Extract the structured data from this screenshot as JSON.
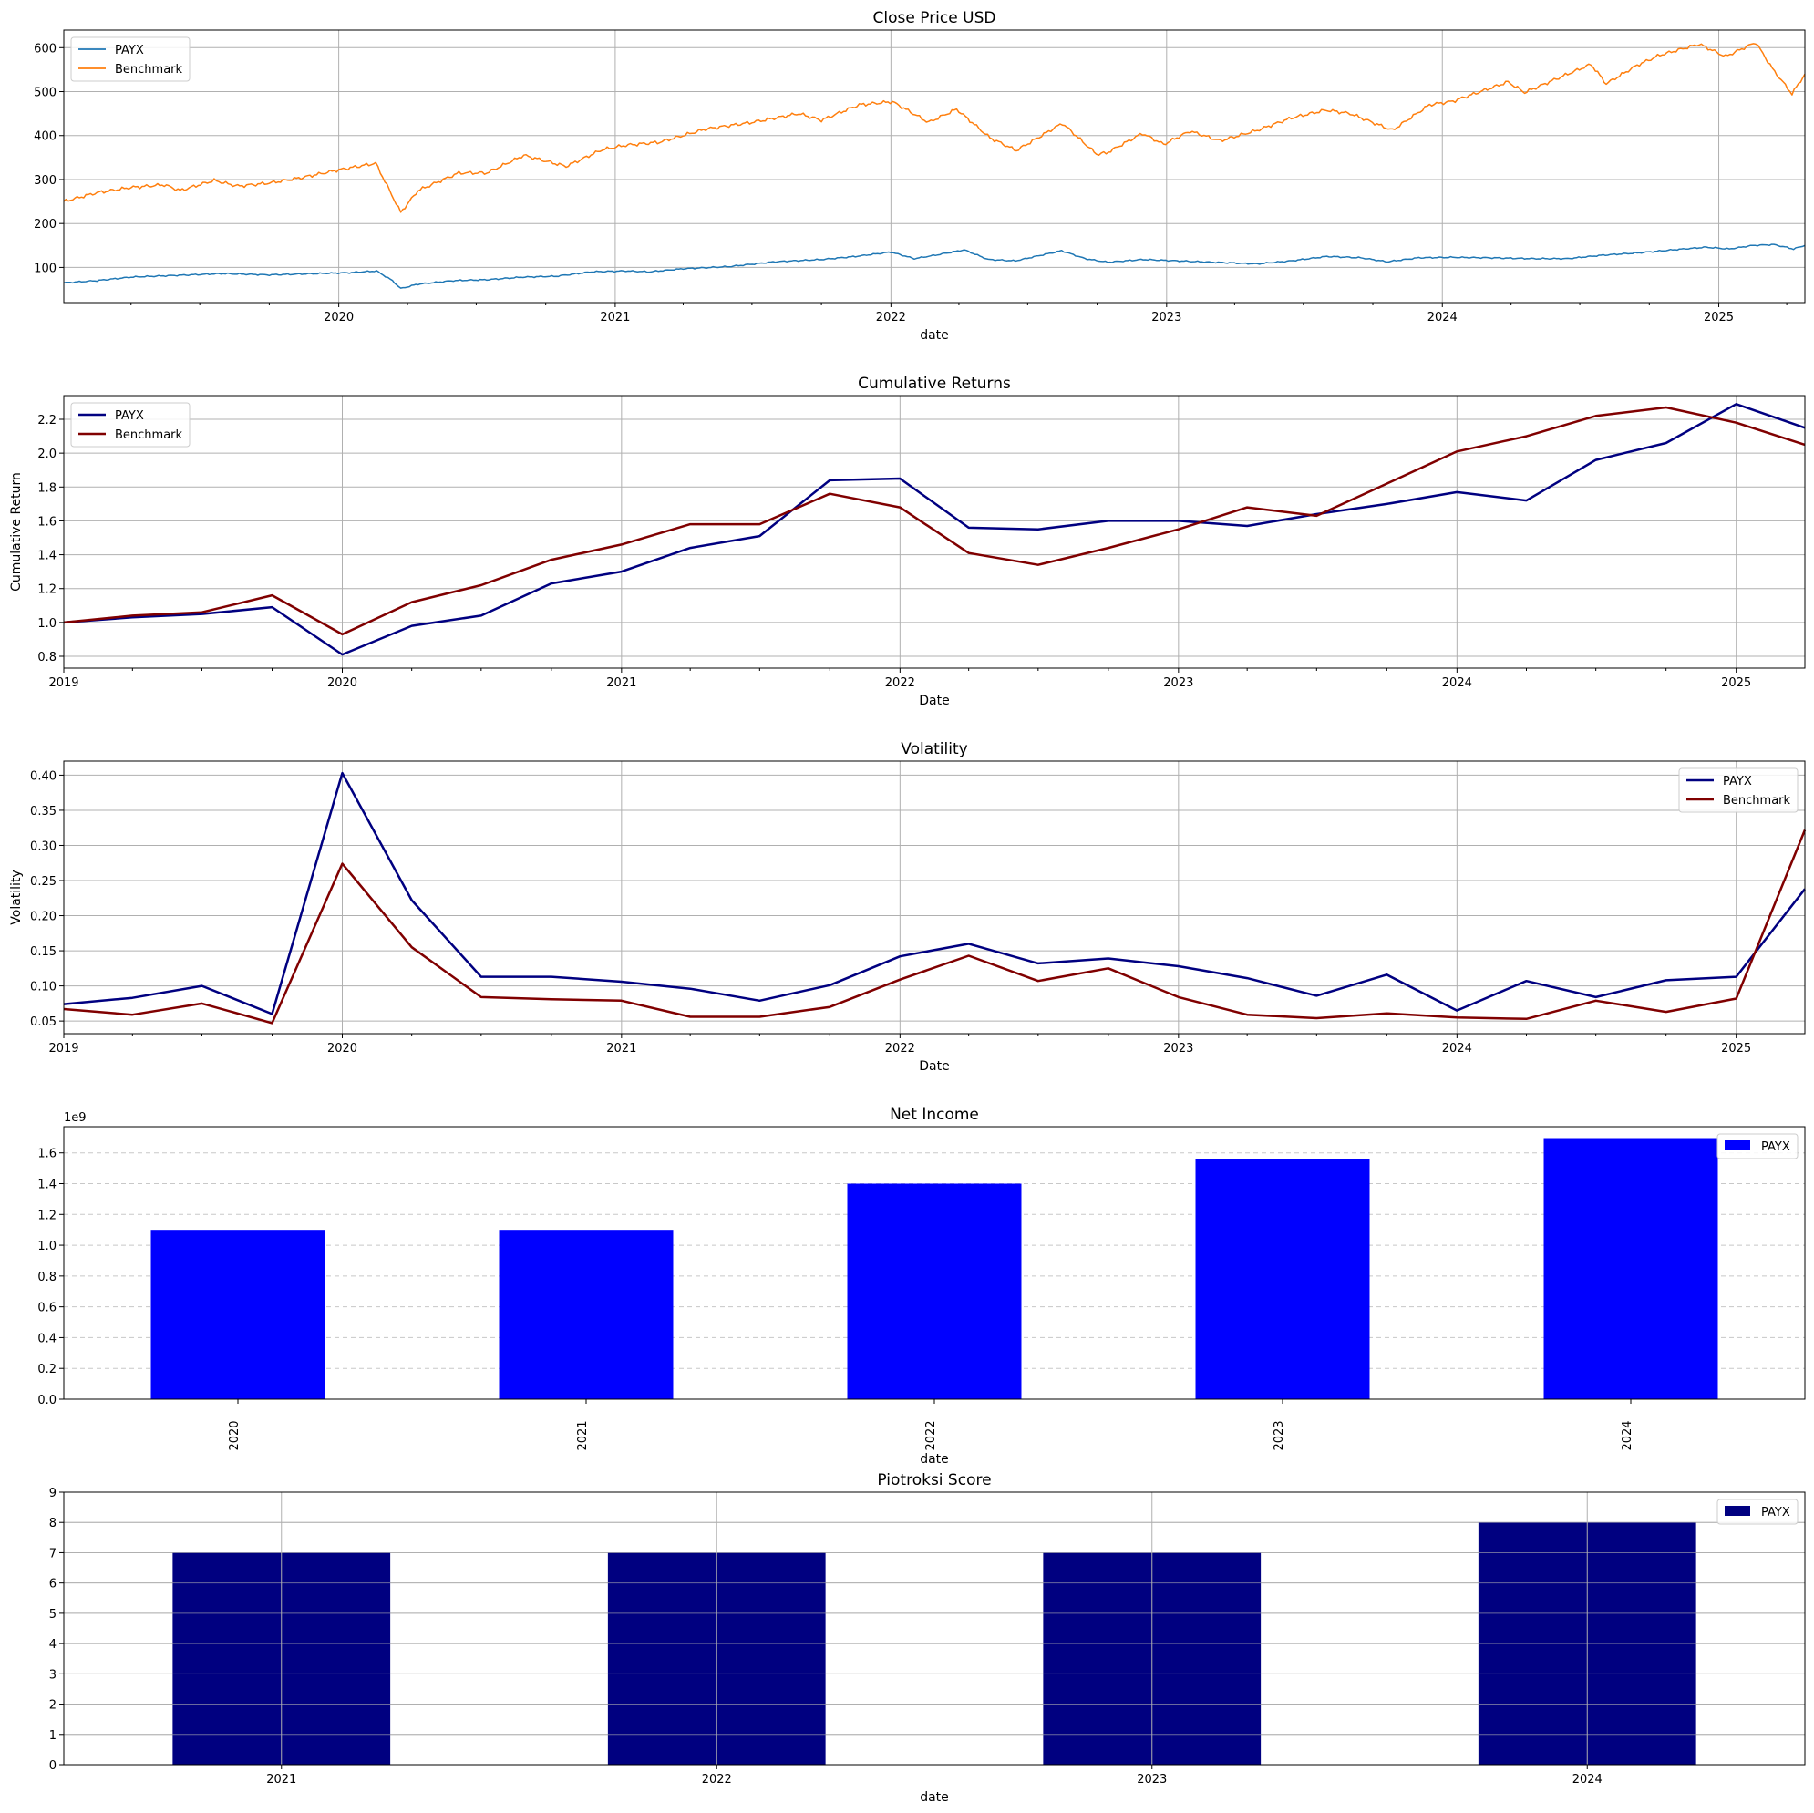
{
  "chart_data": [
    {
      "type": "line",
      "title": "Close Price USD",
      "xlabel": "date",
      "ylabel": "",
      "x_range": [
        "2019-01-02",
        "2025-04-25"
      ],
      "ylim": [
        20,
        640
      ],
      "yticks": [
        100,
        200,
        300,
        400,
        500,
        600
      ],
      "xticks": [
        "2020",
        "2021",
        "2022",
        "2023",
        "2024",
        "2025"
      ],
      "grid": true,
      "legend_position": "upper-left",
      "series": [
        {
          "name": "PAYX",
          "color": "#1f77b4",
          "points": [
            [
              "2019-01-02",
              65
            ],
            [
              "2019-02-15",
              70
            ],
            [
              "2019-04-01",
              78
            ],
            [
              "2019-06-01",
              82
            ],
            [
              "2019-08-01",
              86
            ],
            [
              "2019-10-01",
              83
            ],
            [
              "2019-12-01",
              86
            ],
            [
              "2020-01-15",
              88
            ],
            [
              "2020-02-20",
              92
            ],
            [
              "2020-03-12",
              70
            ],
            [
              "2020-03-23",
              52
            ],
            [
              "2020-04-15",
              62
            ],
            [
              "2020-06-01",
              70
            ],
            [
              "2020-07-15",
              72
            ],
            [
              "2020-09-01",
              78
            ],
            [
              "2020-10-15",
              80
            ],
            [
              "2020-12-01",
              90
            ],
            [
              "2021-01-15",
              92
            ],
            [
              "2021-02-15",
              90
            ],
            [
              "2021-04-01",
              97
            ],
            [
              "2021-06-01",
              102
            ],
            [
              "2021-08-01",
              113
            ],
            [
              "2021-10-01",
              118
            ],
            [
              "2021-11-15",
              125
            ],
            [
              "2022-01-01",
              135
            ],
            [
              "2022-02-01",
              120
            ],
            [
              "2022-03-01",
              128
            ],
            [
              "2022-04-08",
              140
            ],
            [
              "2022-05-10",
              118
            ],
            [
              "2022-06-15",
              115
            ],
            [
              "2022-08-15",
              138
            ],
            [
              "2022-09-15",
              120
            ],
            [
              "2022-10-15",
              112
            ],
            [
              "2022-12-01",
              118
            ],
            [
              "2023-01-15",
              115
            ],
            [
              "2023-03-01",
              112
            ],
            [
              "2023-05-01",
              108
            ],
            [
              "2023-06-15",
              115
            ],
            [
              "2023-08-01",
              125
            ],
            [
              "2023-09-15",
              122
            ],
            [
              "2023-10-20",
              113
            ],
            [
              "2023-12-01",
              122
            ],
            [
              "2024-01-15",
              123
            ],
            [
              "2024-03-01",
              122
            ],
            [
              "2024-05-01",
              120
            ],
            [
              "2024-06-15",
              120
            ],
            [
              "2024-08-01",
              128
            ],
            [
              "2024-09-15",
              133
            ],
            [
              "2024-11-01",
              140
            ],
            [
              "2024-12-15",
              146
            ],
            [
              "2025-01-15",
              142
            ],
            [
              "2025-02-15",
              150
            ],
            [
              "2025-03-15",
              152
            ],
            [
              "2025-04-10",
              142
            ],
            [
              "2025-04-25",
              150
            ]
          ]
        },
        {
          "name": "Benchmark",
          "color": "#ff7f0e",
          "points": [
            [
              "2019-01-02",
              250
            ],
            [
              "2019-02-15",
              270
            ],
            [
              "2019-04-01",
              282
            ],
            [
              "2019-05-15",
              288
            ],
            [
              "2019-06-05",
              275
            ],
            [
              "2019-07-20",
              298
            ],
            [
              "2019-08-20",
              285
            ],
            [
              "2019-10-01",
              292
            ],
            [
              "2019-11-15",
              305
            ],
            [
              "2020-01-01",
              322
            ],
            [
              "2020-02-19",
              337
            ],
            [
              "2020-03-23",
              225
            ],
            [
              "2020-04-15",
              275
            ],
            [
              "2020-06-08",
              315
            ],
            [
              "2020-07-15",
              315
            ],
            [
              "2020-09-02",
              355
            ],
            [
              "2020-10-28",
              330
            ],
            [
              "2020-12-15",
              368
            ],
            [
              "2021-01-15",
              378
            ],
            [
              "2021-03-01",
              385
            ],
            [
              "2021-05-01",
              415
            ],
            [
              "2021-07-01",
              430
            ],
            [
              "2021-09-01",
              450
            ],
            [
              "2021-10-01",
              435
            ],
            [
              "2021-11-20",
              470
            ],
            [
              "2022-01-03",
              477
            ],
            [
              "2022-02-20",
              430
            ],
            [
              "2022-03-29",
              460
            ],
            [
              "2022-05-12",
              395
            ],
            [
              "2022-06-16",
              366
            ],
            [
              "2022-08-16",
              428
            ],
            [
              "2022-09-30",
              358
            ],
            [
              "2022-10-13",
              360
            ],
            [
              "2022-11-30",
              405
            ],
            [
              "2022-12-28",
              380
            ],
            [
              "2023-02-01",
              410
            ],
            [
              "2023-03-13",
              388
            ],
            [
              "2023-05-01",
              412
            ],
            [
              "2023-06-15",
              440
            ],
            [
              "2023-07-31",
              458
            ],
            [
              "2023-09-01",
              450
            ],
            [
              "2023-10-27",
              412
            ],
            [
              "2023-12-15",
              470
            ],
            [
              "2024-01-15",
              478
            ],
            [
              "2024-03-28",
              522
            ],
            [
              "2024-04-19",
              498
            ],
            [
              "2024-06-15",
              540
            ],
            [
              "2024-07-16",
              562
            ],
            [
              "2024-08-05",
              518
            ],
            [
              "2024-09-15",
              560
            ],
            [
              "2024-10-15",
              583
            ],
            [
              "2024-12-06",
              608
            ],
            [
              "2025-01-10",
              580
            ],
            [
              "2025-02-19",
              612
            ],
            [
              "2025-03-13",
              552
            ],
            [
              "2025-04-08",
              495
            ],
            [
              "2025-04-25",
              540
            ]
          ]
        }
      ]
    },
    {
      "type": "line",
      "title": "Cumulative Returns",
      "xlabel": "Date",
      "ylabel": "Cumulative Return",
      "x_range": [
        "2019-01-01",
        "2025-04-01"
      ],
      "ylim": [
        0.73,
        2.34
      ],
      "yticks": [
        0.8,
        1.0,
        1.2,
        1.4,
        1.6,
        1.8,
        2.0,
        2.2
      ],
      "ytick_labels": [
        "0.8",
        "1.0",
        "1.2",
        "1.4",
        "1.6",
        "1.8",
        "2.0",
        "2.2"
      ],
      "xticks": [
        "2019",
        "2020",
        "2021",
        "2022",
        "2023",
        "2024",
        "2025"
      ],
      "grid": true,
      "legend_position": "upper-left",
      "x": [
        "2019-01-01",
        "2019-04-01",
        "2019-07-01",
        "2019-10-01",
        "2020-01-01",
        "2020-04-01",
        "2020-07-01",
        "2020-10-01",
        "2021-01-01",
        "2021-04-01",
        "2021-07-01",
        "2021-10-01",
        "2022-01-01",
        "2022-04-01",
        "2022-07-01",
        "2022-10-01",
        "2023-01-01",
        "2023-04-01",
        "2023-07-01",
        "2023-10-01",
        "2024-01-01",
        "2024-04-01",
        "2024-07-01",
        "2024-10-01",
        "2025-01-01",
        "2025-04-01"
      ],
      "series": [
        {
          "name": "PAYX",
          "color": "#000080",
          "values": [
            1.0,
            1.03,
            1.05,
            1.09,
            0.81,
            0.98,
            1.04,
            1.23,
            1.3,
            1.44,
            1.51,
            1.84,
            1.85,
            1.56,
            1.55,
            1.6,
            1.6,
            1.57,
            1.64,
            1.7,
            1.77,
            1.72,
            1.96,
            2.06,
            2.29,
            2.15
          ]
        },
        {
          "name": "Benchmark",
          "color": "#800000",
          "values": [
            1.0,
            1.04,
            1.06,
            1.16,
            0.93,
            1.12,
            1.22,
            1.37,
            1.46,
            1.58,
            1.58,
            1.76,
            1.68,
            1.41,
            1.34,
            1.44,
            1.55,
            1.68,
            1.63,
            1.82,
            2.01,
            2.1,
            2.22,
            2.27,
            2.18,
            2.05
          ]
        }
      ]
    },
    {
      "type": "line",
      "title": "Volatility",
      "xlabel": "Date",
      "ylabel": "Volatility",
      "x_range": [
        "2019-01-01",
        "2025-04-01"
      ],
      "ylim": [
        0.032,
        0.42
      ],
      "yticks": [
        0.05,
        0.1,
        0.15,
        0.2,
        0.25,
        0.3,
        0.35,
        0.4
      ],
      "ytick_labels": [
        "0.05",
        "0.10",
        "0.15",
        "0.20",
        "0.25",
        "0.30",
        "0.35",
        "0.40"
      ],
      "xticks": [
        "2019",
        "2020",
        "2021",
        "2022",
        "2023",
        "2024",
        "2025"
      ],
      "grid": true,
      "legend_position": "upper-right",
      "x": [
        "2019-01-01",
        "2019-04-01",
        "2019-07-01",
        "2019-10-01",
        "2020-01-01",
        "2020-04-01",
        "2020-07-01",
        "2020-10-01",
        "2021-01-01",
        "2021-04-01",
        "2021-07-01",
        "2021-10-01",
        "2022-01-01",
        "2022-04-01",
        "2022-07-01",
        "2022-10-01",
        "2023-01-01",
        "2023-04-01",
        "2023-07-01",
        "2023-10-01",
        "2024-01-01",
        "2024-04-01",
        "2024-07-01",
        "2024-10-01",
        "2025-01-01",
        "2025-04-01"
      ],
      "series": [
        {
          "name": "PAYX",
          "color": "#000080",
          "values": [
            0.074,
            0.083,
            0.1,
            0.06,
            0.403,
            0.222,
            0.113,
            0.113,
            0.106,
            0.096,
            0.079,
            0.101,
            0.142,
            0.16,
            0.132,
            0.139,
            0.128,
            0.111,
            0.086,
            0.116,
            0.065,
            0.107,
            0.084,
            0.108,
            0.113,
            0.238
          ]
        },
        {
          "name": "Benchmark",
          "color": "#800000",
          "values": [
            0.067,
            0.059,
            0.075,
            0.047,
            0.274,
            0.155,
            0.084,
            0.081,
            0.079,
            0.056,
            0.056,
            0.07,
            0.109,
            0.143,
            0.107,
            0.125,
            0.084,
            0.059,
            0.054,
            0.061,
            0.055,
            0.053,
            0.079,
            0.063,
            0.082,
            0.322
          ]
        }
      ]
    },
    {
      "type": "bar",
      "title": "Net Income",
      "xlabel": "date",
      "ylabel": "",
      "offset_text": "1e9",
      "categories": [
        "2020",
        "2021",
        "2022",
        "2023",
        "2024"
      ],
      "ylim": [
        0,
        1.77
      ],
      "yticks": [
        0.0,
        0.2,
        0.4,
        0.6,
        0.8,
        1.0,
        1.2,
        1.4,
        1.6
      ],
      "ytick_labels": [
        "0.0",
        "0.2",
        "0.4",
        "0.6",
        "0.8",
        "1.0",
        "1.2",
        "1.4",
        "1.6"
      ],
      "grid": "y-dashed",
      "legend_position": "upper-right",
      "series": [
        {
          "name": "PAYX",
          "color": "#0000ff",
          "values": [
            1.1,
            1.1,
            1.4,
            1.56,
            1.69
          ]
        }
      ]
    },
    {
      "type": "bar",
      "title": "Piotroksi Score",
      "xlabel": "date",
      "ylabel": "",
      "categories": [
        "2021",
        "2022",
        "2023",
        "2024"
      ],
      "ylim": [
        0,
        9
      ],
      "yticks": [
        0,
        1,
        2,
        3,
        4,
        5,
        6,
        7,
        8,
        9
      ],
      "ytick_labels": [
        "0",
        "1",
        "2",
        "3",
        "4",
        "5",
        "6",
        "7",
        "8",
        "9"
      ],
      "grid": true,
      "legend_position": "upper-right",
      "series": [
        {
          "name": "PAYX",
          "color": "#000080",
          "values": [
            7,
            7,
            7,
            8
          ]
        }
      ]
    }
  ]
}
